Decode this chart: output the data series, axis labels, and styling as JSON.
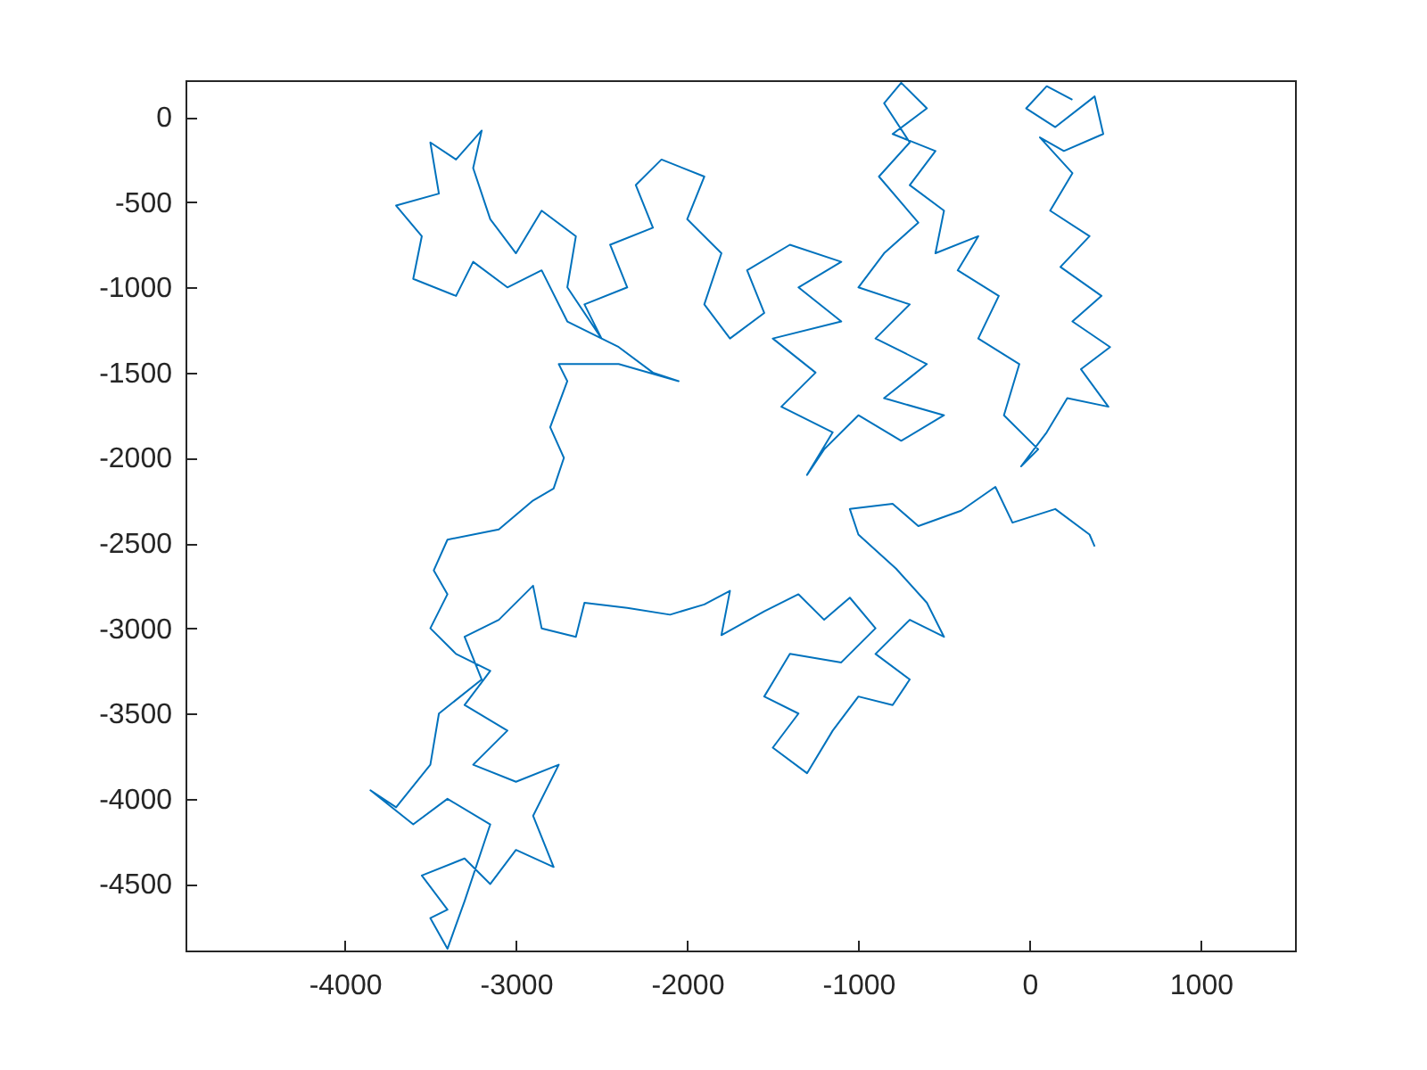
{
  "chart_data": {
    "type": "line",
    "color": "#0072bd",
    "grid": false,
    "xlim": [
      -4930,
      1550
    ],
    "ylim": [
      -4890,
      215
    ],
    "xticks": [
      -4000,
      -3000,
      -2000,
      -1000,
      0,
      1000
    ],
    "yticks": [
      0,
      -500,
      -1000,
      -1500,
      -2000,
      -2500,
      -3000,
      -3500,
      -4000,
      -4500
    ],
    "x": [
      250,
      100,
      -20,
      150,
      380,
      430,
      200,
      60,
      250,
      120,
      350,
      180,
      420,
      250,
      470,
      300,
      460,
      220,
      100,
      -50,
      50,
      -150,
      -60,
      -300,
      -180,
      -420,
      -300,
      -550,
      -500,
      -700,
      -550,
      -800,
      -600,
      -750,
      -850,
      -700,
      -880,
      -650,
      -850,
      -1000,
      -700,
      -900,
      -600,
      -850,
      -500,
      -750,
      -1000,
      -1200,
      -1300,
      -1150,
      -1450,
      -1250,
      -1500,
      -1100,
      -1350,
      -1100,
      -1400,
      -1650,
      -1550,
      -1750,
      -1900,
      -1800,
      -2000,
      -1900,
      -2150,
      -2300,
      -2200,
      -2450,
      -2350,
      -2600,
      -2500,
      -2700,
      -2650,
      -2850,
      -3000,
      -3150,
      -3250,
      -3200,
      -3350,
      -3500,
      -3450,
      -3700,
      -3550,
      -3600,
      -3350,
      -3250,
      -3050,
      -2850,
      -2700,
      -2400,
      -2200,
      -2050,
      -2400,
      -2750,
      -2700,
      -2800,
      -2720,
      -2780,
      -2900,
      -3100,
      -3400,
      -3480,
      -3400,
      -3500,
      -3350,
      -3150,
      -3300,
      -3050,
      -3250,
      -3000,
      -2750,
      -2900,
      -2780,
      -3000,
      -3150,
      -3300,
      -3550,
      -3400,
      -3500,
      -3400,
      -3300,
      -3150,
      -3400,
      -3600,
      -3850,
      -3700,
      -3500,
      -3450,
      -3200,
      -3300,
      -3100,
      -2900,
      -2850,
      -2650,
      -2600,
      -2350,
      -2100,
      -1900,
      -1750,
      -1800,
      -1550,
      -1350,
      -1200,
      -1050,
      -900,
      -1100,
      -1400,
      -1550,
      -1350,
      -1500,
      -1300,
      -1150,
      -1000,
      -800,
      -700,
      -900,
      -700,
      -500,
      -600,
      -780,
      -1000,
      -1050,
      -800,
      -650,
      -400,
      -200,
      -100,
      150,
      350,
      380
    ],
    "values": [
      100,
      180,
      50,
      -60,
      120,
      -100,
      -200,
      -120,
      -330,
      -550,
      -700,
      -880,
      -1050,
      -1200,
      -1350,
      -1480,
      -1700,
      -1650,
      -1850,
      -2050,
      -1950,
      -1750,
      -1450,
      -1300,
      -1050,
      -900,
      -700,
      -800,
      -550,
      -400,
      -200,
      -100,
      50,
      200,
      80,
      -150,
      -350,
      -620,
      -800,
      -1000,
      -1100,
      -1300,
      -1450,
      -1650,
      -1750,
      -1900,
      -1750,
      -1950,
      -2100,
      -1850,
      -1700,
      -1500,
      -1300,
      -1200,
      -1000,
      -850,
      -750,
      -900,
      -1150,
      -1300,
      -1100,
      -800,
      -600,
      -350,
      -250,
      -400,
      -650,
      -750,
      -1000,
      -1100,
      -1300,
      -1000,
      -700,
      -550,
      -800,
      -600,
      -300,
      -80,
      -250,
      -150,
      -450,
      -520,
      -700,
      -950,
      -1050,
      -850,
      -1000,
      -900,
      -1200,
      -1350,
      -1500,
      -1550,
      -1450,
      -1450,
      -1550,
      -1820,
      -2000,
      -2180,
      -2250,
      -2420,
      -2480,
      -2660,
      -2800,
      -3000,
      -3150,
      -3250,
      -3450,
      -3600,
      -3800,
      -3900,
      -3800,
      -4100,
      -4400,
      -4300,
      -4500,
      -4350,
      -4450,
      -4650,
      -4700,
      -4880,
      -4600,
      -4150,
      -4000,
      -4150,
      -3950,
      -4050,
      -3800,
      -3500,
      -3300,
      -3050,
      -2950,
      -2750,
      -3000,
      -3050,
      -2850,
      -2880,
      -2920,
      -2860,
      -2780,
      -3040,
      -2900,
      -2800,
      -2950,
      -2820,
      -3000,
      -3200,
      -3150,
      -3400,
      -3500,
      -3700,
      -3850,
      -3600,
      -3400,
      -3450,
      -3300,
      -3150,
      -2950,
      -3050,
      -2850,
      -2650,
      -2450,
      -2300,
      -2270,
      -2400,
      -2310,
      -2170,
      -2380,
      -2300,
      -2450,
      -2520
    ]
  }
}
